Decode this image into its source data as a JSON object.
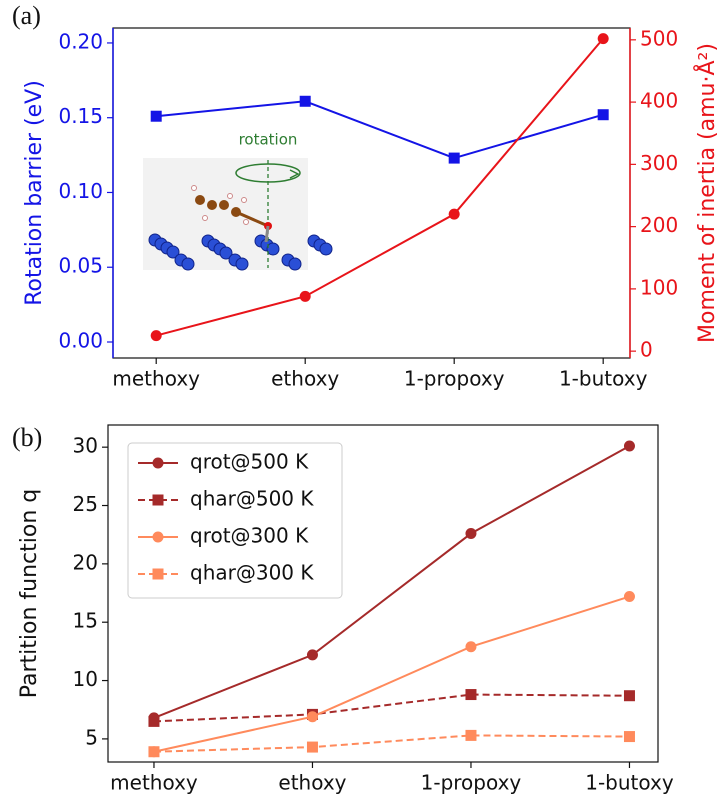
{
  "chart_data": [
    {
      "type": "line",
      "panel_label": "(a)",
      "categories": [
        "methoxy",
        "ethoxy",
        "1-propoxy",
        "1-butoxy"
      ],
      "y_label": "Rotation barrier (eV)",
      "y2_label": "Moment of inertia (amu·Å²)",
      "ylim": [
        -0.0107,
        0.21
      ],
      "yticks": [
        {
          "value": 0,
          "label": "0.00"
        },
        {
          "value": 0.05,
          "label": "0.05"
        },
        {
          "value": 0.1,
          "label": "0.10"
        },
        {
          "value": 0.15,
          "label": "0.15"
        },
        {
          "value": 0.2,
          "label": "0.20"
        }
      ],
      "y2lim": [
        -11,
        519
      ],
      "y2ticks": [
        0,
        100,
        200,
        300,
        400,
        500
      ],
      "y_color": "#1414e6",
      "y2_color": "#e8141a",
      "annotation": "rotation",
      "series": [
        {
          "color": "#1414e6",
          "marker": "square",
          "linestyle": "solid",
          "values": [
            0.151,
            0.161,
            0.123,
            0.152
          ]
        },
        {
          "color": "#e8141a",
          "marker": "circle",
          "linestyle": "solid",
          "axis": "y2",
          "values": [
            25,
            88,
            220,
            502
          ]
        }
      ]
    },
    {
      "type": "line",
      "panel_label": "(b)",
      "categories": [
        "methoxy",
        "ethoxy",
        "1-propoxy",
        "1-butoxy"
      ],
      "y_label": "Partition function q",
      "ylim": [
        3.02,
        31.9
      ],
      "yticks": [
        5,
        10,
        15,
        20,
        25,
        30
      ],
      "legend": "upper left",
      "series": [
        {
          "name": "qrot@500 K",
          "color": "#a52a2a",
          "marker": "circle",
          "linestyle": "solid",
          "values": [
            6.8,
            12.2,
            22.6,
            30.1
          ]
        },
        {
          "name": "qhar@500 K",
          "color": "#a52a2a",
          "marker": "square",
          "linestyle": "dashed",
          "values": [
            6.5,
            7.1,
            8.8,
            8.7
          ]
        },
        {
          "name": "qrot@300 K",
          "color": "#ff8a5c",
          "marker": "circle",
          "linestyle": "solid",
          "values": [
            3.9,
            6.9,
            12.9,
            17.2
          ]
        },
        {
          "name": "qhar@300 K",
          "color": "#ff8a5c",
          "marker": "square",
          "linestyle": "dashed",
          "values": [
            3.9,
            4.3,
            5.3,
            5.2
          ]
        }
      ]
    }
  ]
}
